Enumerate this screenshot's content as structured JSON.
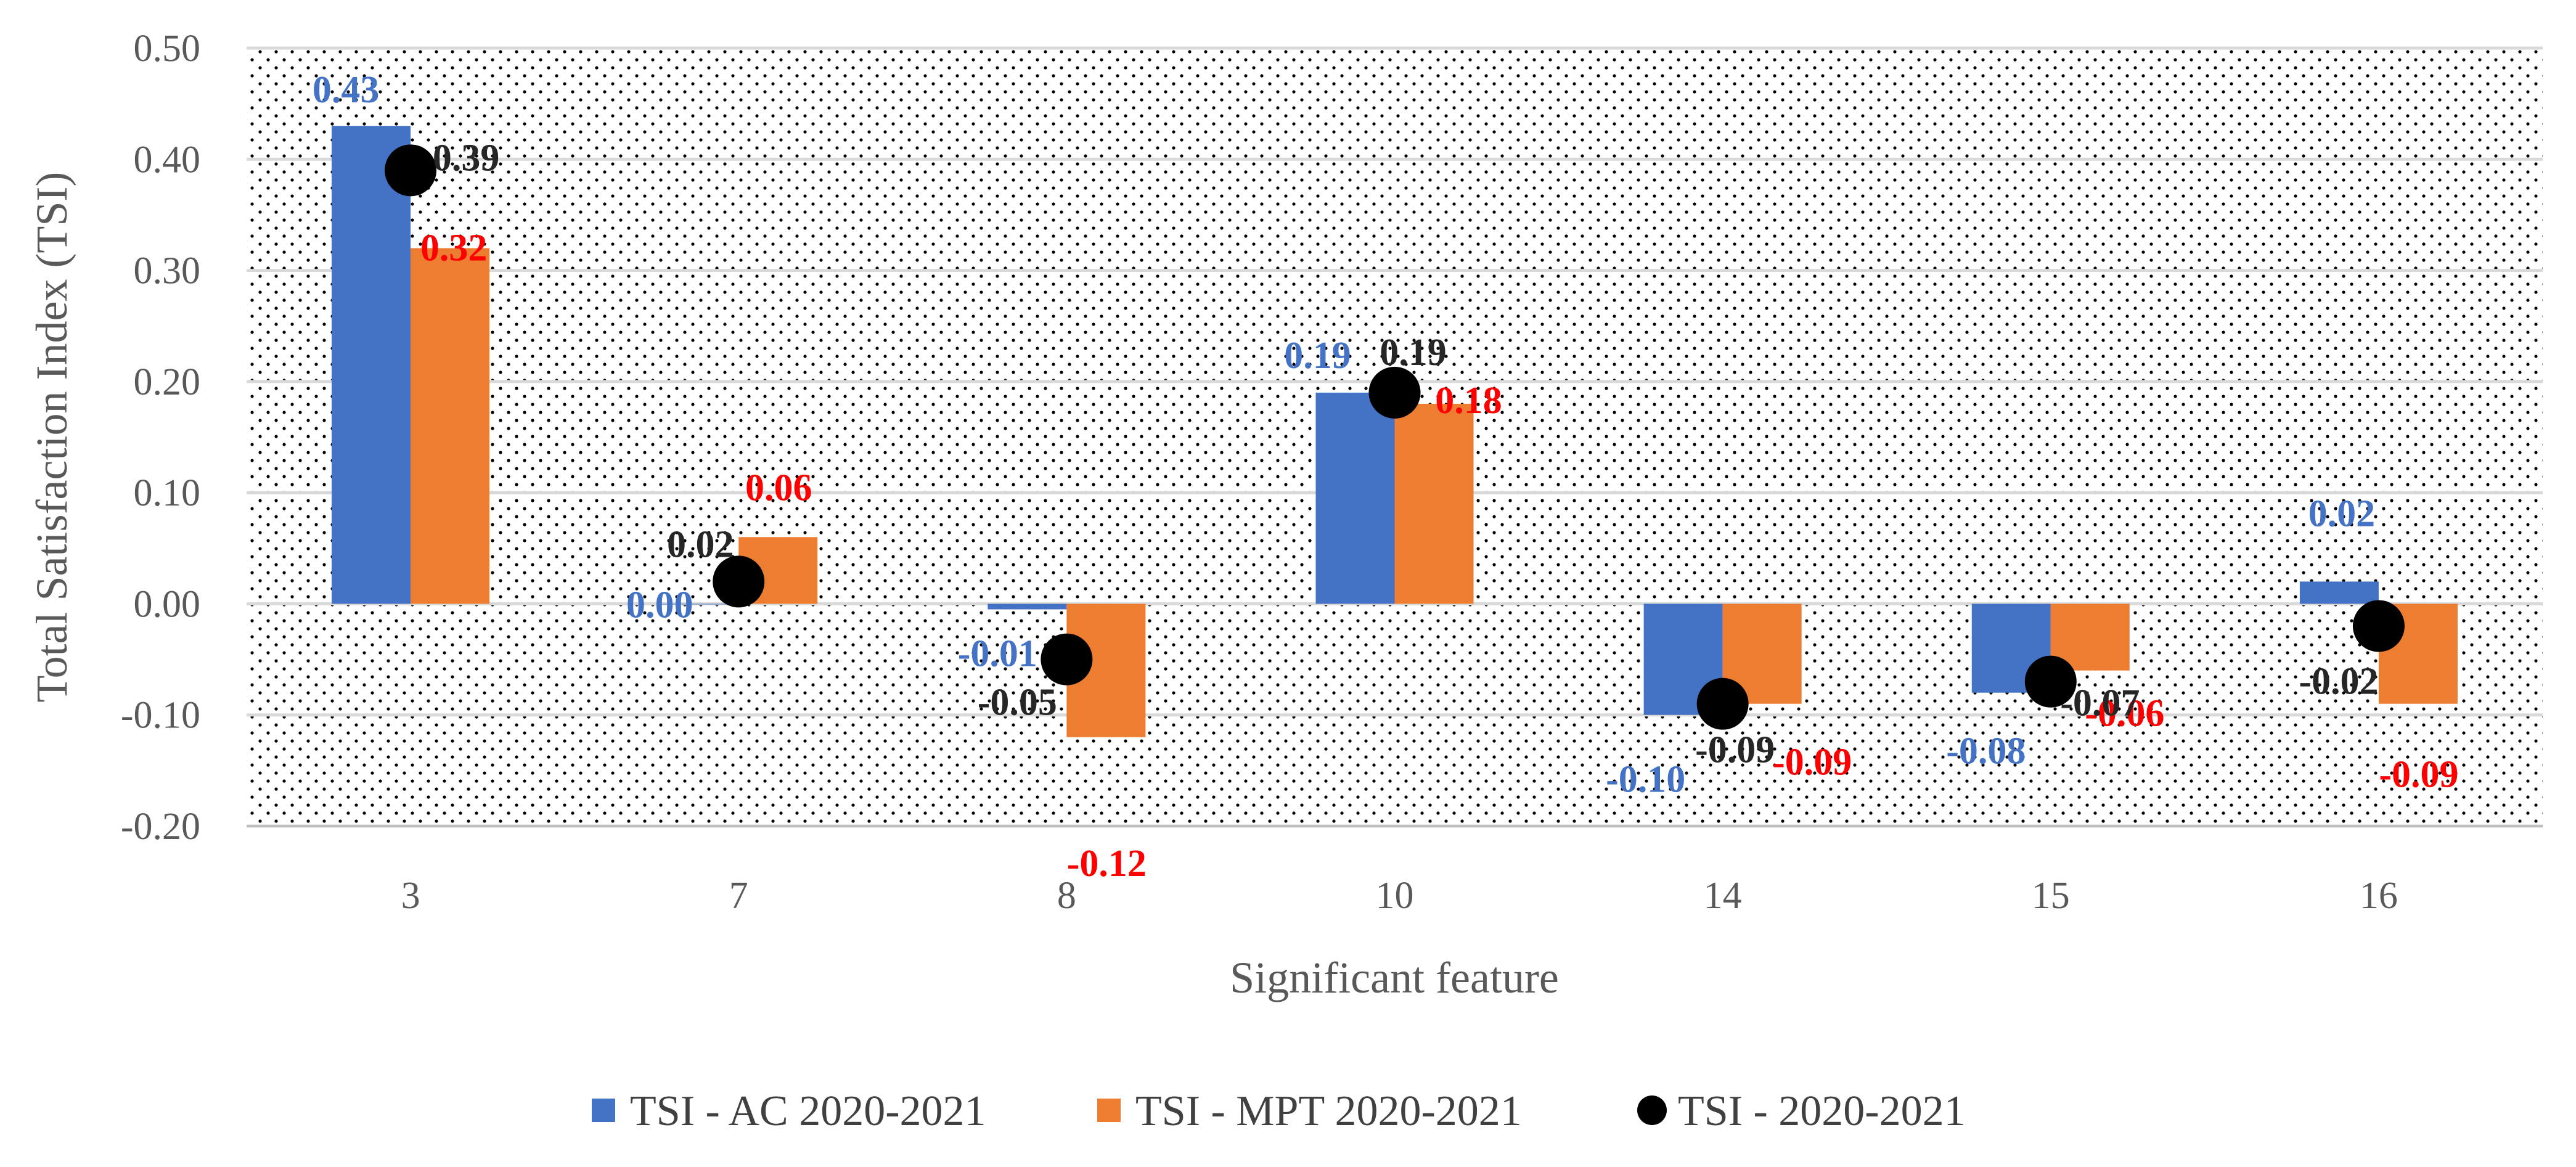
{
  "chart_data": {
    "type": "bar",
    "title": "",
    "xlabel": "Significant feature",
    "ylabel": "Total Satisfaction Index (TSI)",
    "ylim": [
      -0.2,
      0.5
    ],
    "yticks": [
      "0.50",
      "0.40",
      "0.30",
      "0.20",
      "0.10",
      "0.00",
      "-0.10",
      "-0.20"
    ],
    "ytick_values": [
      0.5,
      0.4,
      0.3,
      0.2,
      0.1,
      0.0,
      -0.1,
      -0.2
    ],
    "categories": [
      "3",
      "7",
      "8",
      "10",
      "14",
      "15",
      "16"
    ],
    "grid": true,
    "legend_position": "bottom",
    "series": [
      {
        "name": "TSI - AC 2020-2021",
        "kind": "bar",
        "color": "#4472C4",
        "label_color": "#4472C4",
        "values": [
          0.43,
          0.0,
          -0.005,
          0.19,
          -0.1,
          -0.08,
          0.02
        ],
        "labels": [
          "0.43",
          "0.00",
          "-0.01",
          "0.19",
          "-0.10",
          "-0.08",
          "0.02"
        ]
      },
      {
        "name": "TSI - MPT 2020-2021",
        "kind": "bar",
        "color": "#ED7D31",
        "label_color": "#FF0000",
        "values": [
          0.32,
          0.06,
          -0.12,
          0.18,
          -0.09,
          -0.06,
          -0.09
        ],
        "labels": [
          "0.32",
          "0.06",
          "-0.12",
          "0.18",
          "-0.09",
          "-0.06",
          "-0.09"
        ]
      },
      {
        "name": "TSI - 2020-2021",
        "kind": "point",
        "color": "#000000",
        "label_color": "#262626",
        "values": [
          0.39,
          0.02,
          -0.05,
          0.19,
          -0.09,
          -0.07,
          -0.02
        ],
        "labels": [
          "0.39",
          "0.02",
          "-0.05",
          "0.19",
          "-0.09",
          "-0.07",
          "-0.02"
        ]
      }
    ]
  }
}
